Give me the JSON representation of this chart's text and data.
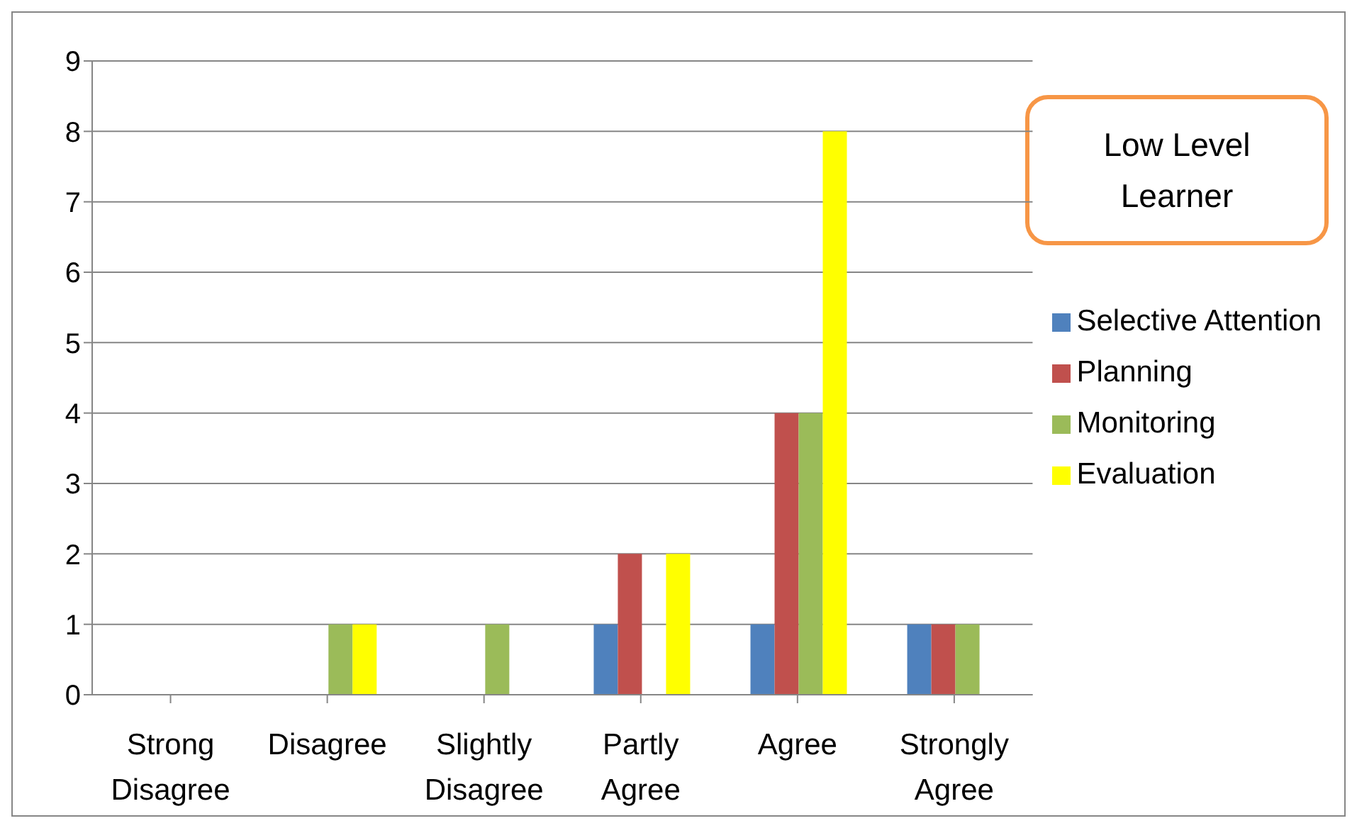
{
  "chart_data": {
    "type": "bar",
    "title": "Low Level Learner",
    "categories": [
      "Strong Disagree",
      "Disagree",
      "Slightly Disagree",
      "Partly Agree",
      "Agree",
      "Strongly Agree"
    ],
    "series": [
      {
        "name": "Selective Attention",
        "color": "#4f81bd",
        "values": [
          0,
          0,
          0,
          1,
          1,
          1
        ]
      },
      {
        "name": "Planning",
        "color": "#c0504d",
        "values": [
          0,
          0,
          0,
          2,
          4,
          1
        ]
      },
      {
        "name": "Monitoring",
        "color": "#9bbb59",
        "values": [
          0,
          1,
          1,
          0,
          4,
          1
        ]
      },
      {
        "name": "Evaluation",
        "color": "#ffff00",
        "values": [
          0,
          1,
          0,
          2,
          8,
          0
        ]
      }
    ],
    "ylim": [
      0,
      9
    ],
    "yticks": [
      0,
      1,
      2,
      3,
      4,
      5,
      6,
      7,
      8,
      9
    ],
    "grid": "y",
    "legend": "right"
  }
}
